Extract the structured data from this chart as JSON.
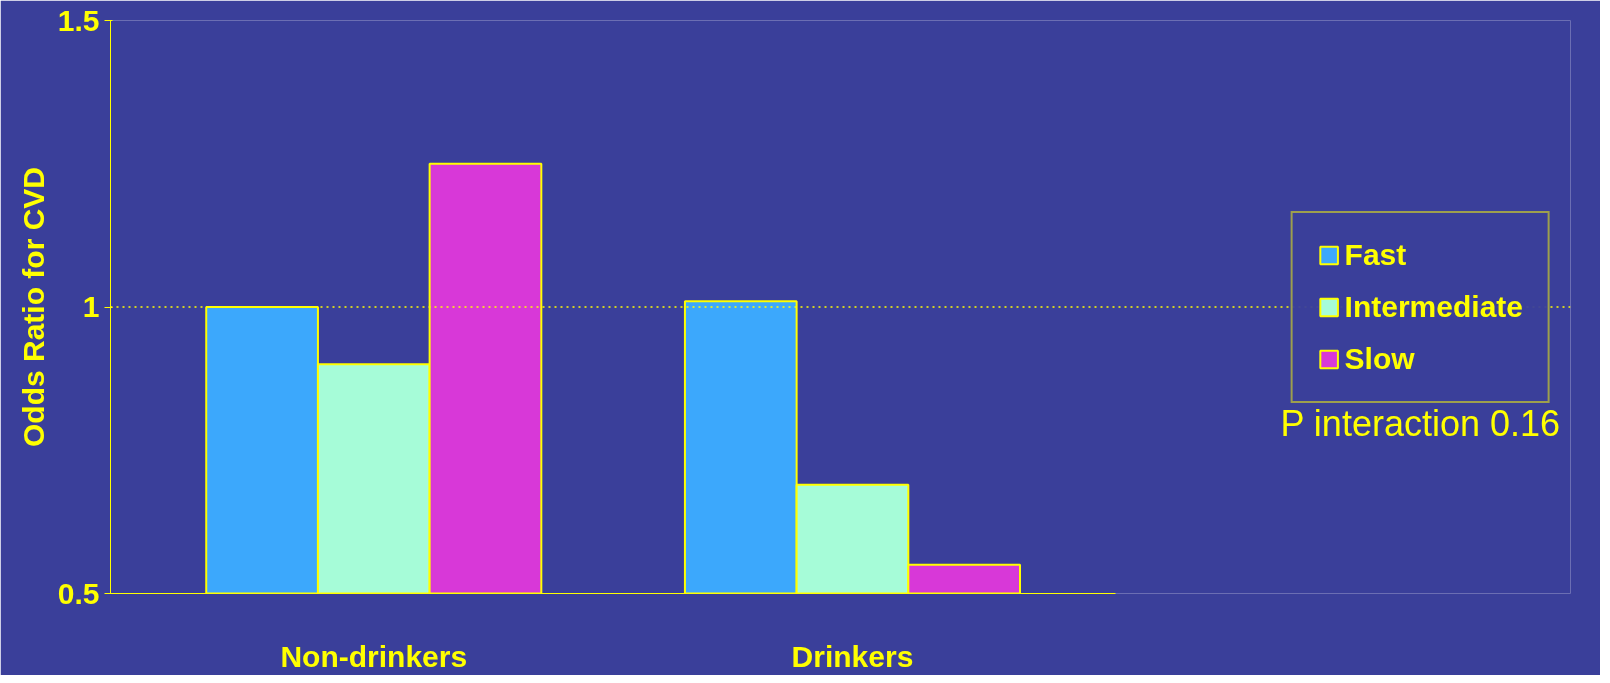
{
  "chart_data": {
    "type": "bar",
    "ylabel": "Odds Ratio for CVD",
    "categories": [
      "Non-drinkers",
      "Drinkers"
    ],
    "series": [
      {
        "name": "Fast",
        "color": "#3ca8fc",
        "values": [
          1.0,
          1.01
        ]
      },
      {
        "name": "Intermediate",
        "color": "#a6fcd8",
        "values": [
          0.9,
          0.69
        ]
      },
      {
        "name": "Slow",
        "color": "#d838d8",
        "values": [
          1.25,
          0.55
        ]
      }
    ],
    "ylim": [
      0.5,
      1.5
    ],
    "yticks": [
      0.5,
      1,
      1.5
    ],
    "grid": false,
    "legend": "right",
    "ref_lines": [
      {
        "axis": "y",
        "value": 1,
        "color": "#ffff00",
        "line_style": "dotted"
      }
    ],
    "annotations": [
      "P interaction 0.16"
    ]
  }
}
